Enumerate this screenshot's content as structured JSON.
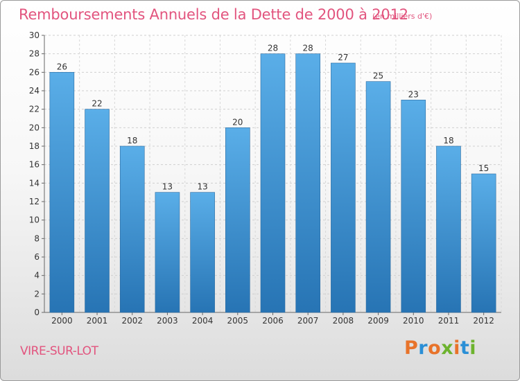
{
  "header": {
    "title": "Remboursements Annuels de la Dette de 2000 à 2012",
    "unit": "(en milliers d'€)"
  },
  "footer": {
    "commune": "VIRE-SUR-LOT",
    "logo_text": "Proxiti"
  },
  "colors": {
    "title": "#e2547e",
    "bar_light": "#5aaee8",
    "bar_dark": "#2774b4",
    "logo_letters": [
      "#e8732a",
      "#2a8fd6",
      "#e8732a",
      "#6db32e",
      "#e8732a",
      "#2a8fd6",
      "#6db32e"
    ]
  },
  "chart_data": {
    "type": "bar",
    "categories": [
      "2000",
      "2001",
      "2002",
      "2003",
      "2004",
      "2005",
      "2006",
      "2007",
      "2008",
      "2009",
      "2010",
      "2011",
      "2012"
    ],
    "values": [
      26,
      22,
      18,
      13,
      13,
      20,
      28,
      28,
      27,
      25,
      23,
      18,
      15
    ],
    "data_labels": [
      "26",
      "22",
      "18",
      "13",
      "13",
      "20",
      "28",
      "28",
      "27",
      "25",
      "23",
      "18",
      "15"
    ],
    "title": "Remboursements Annuels de la Dette de 2000 à 2012",
    "ylabel": "",
    "xlabel": "",
    "ylim": [
      0,
      30
    ],
    "yticks": [
      "0",
      "2",
      "4",
      "6",
      "8",
      "10",
      "12",
      "14",
      "16",
      "18",
      "20",
      "22",
      "24",
      "26",
      "28",
      "30"
    ],
    "grid": true,
    "legend": "none"
  }
}
